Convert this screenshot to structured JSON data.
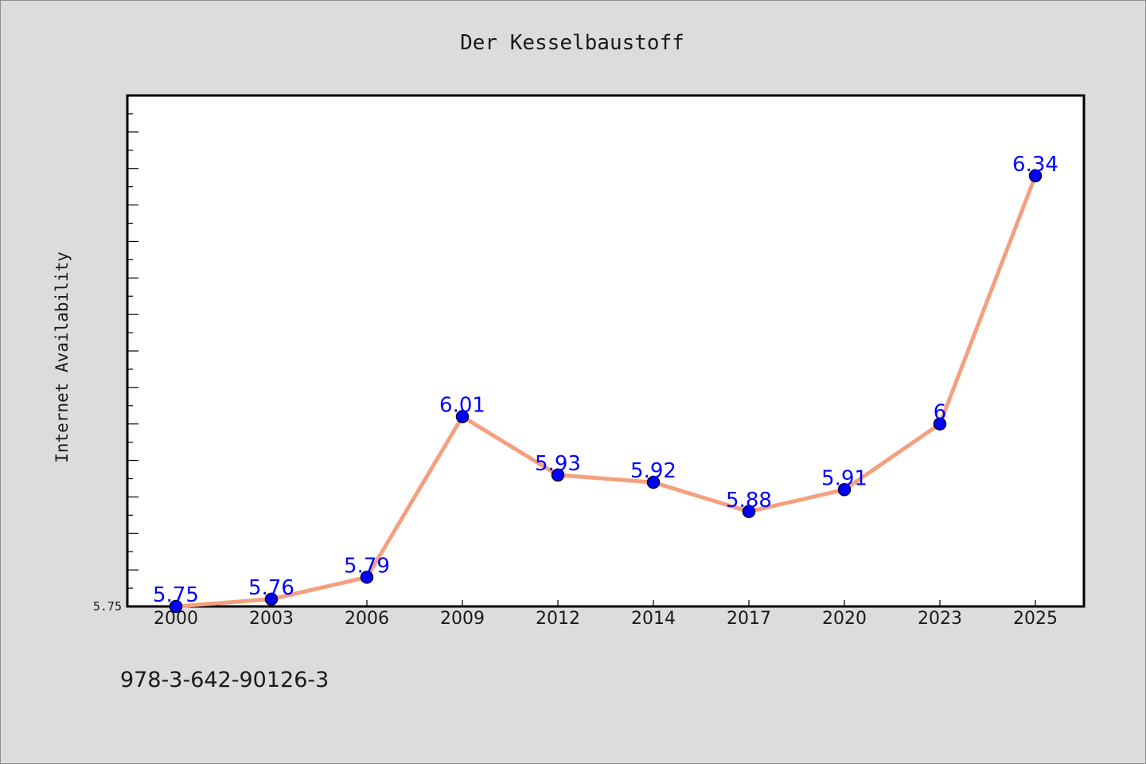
{
  "chart_data": {
    "type": "line",
    "title": "Der Kesselbaustoff",
    "xlabel": "",
    "ylabel": "Internet Availability",
    "categories": [
      "2000",
      "2003",
      "2006",
      "2009",
      "2012",
      "2014",
      "2017",
      "2020",
      "2023",
      "2025"
    ],
    "series": [
      {
        "values": [
          5.75,
          5.76,
          5.79,
          6.01,
          5.93,
          5.92,
          5.88,
          5.91,
          6.0,
          6.34
        ]
      }
    ],
    "data_labels": [
      "5.75",
      "5.76",
      "5.79",
      "6.01",
      "5.93",
      "5.92",
      "5.88",
      "5.91",
      "6",
      "6.34"
    ],
    "ytick_labels": [
      "5.75"
    ],
    "ylim": [
      5.75,
      6.45
    ],
    "grid": false,
    "colors": {
      "line": "#f4a07f",
      "marker": "#0000ff",
      "marker_edge": "#000033",
      "label": "#0000ff",
      "plot_bg": "#ffffff",
      "figure_bg": "#dcdcdc"
    }
  },
  "footer": {
    "text": "978-3-642-90126-3"
  }
}
